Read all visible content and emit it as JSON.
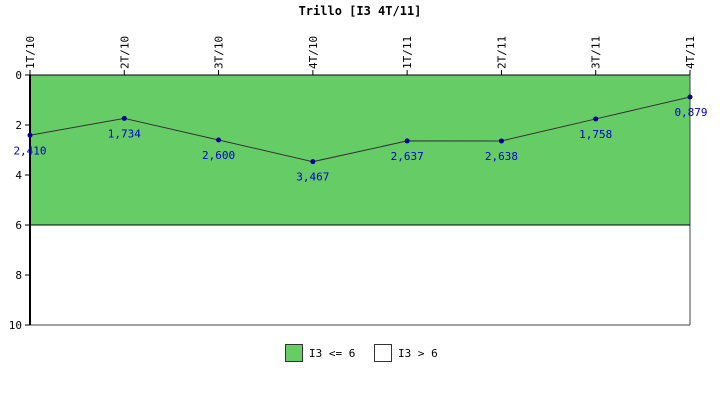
{
  "chart_data": {
    "type": "line",
    "title": "Trillo [I3 4T/11]",
    "categories": [
      "1T/10",
      "2T/10",
      "3T/10",
      "4T/10",
      "1T/11",
      "2T/11",
      "3T/11",
      "4T/11"
    ],
    "values": [
      2.41,
      1.734,
      2.6,
      3.467,
      2.637,
      2.638,
      1.758,
      0.879
    ],
    "value_labels": [
      "2,410",
      "1,734",
      "2,600",
      "3,467",
      "2,637",
      "2,638",
      "1,758",
      "0,879"
    ],
    "ylim": [
      10,
      0
    ],
    "y_ticks": [
      "0",
      "2",
      "4",
      "6",
      "8",
      "10"
    ],
    "y_tick_values": [
      0,
      2,
      4,
      6,
      8,
      10
    ],
    "threshold": 6,
    "bands": [
      {
        "name": "I3 <= 6",
        "from": 0,
        "to": 6,
        "color": "#66cc66"
      },
      {
        "name": "I3 > 6",
        "from": 6,
        "to": 10,
        "color": "#ffffff"
      }
    ],
    "line_color": "#333333",
    "point_color": "#000099",
    "label_color": "#0000cc",
    "legend_position": "bottom"
  }
}
